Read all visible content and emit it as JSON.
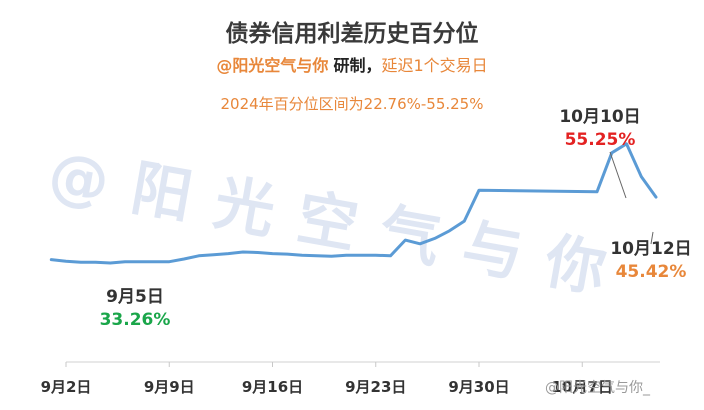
{
  "chart_data": {
    "type": "line",
    "title": "债券信用利差历史百分位",
    "subtitle": {
      "author": "@阳光空气与你",
      "action": "研制，",
      "note": "延迟1个交易日"
    },
    "range_note": "2024年百分位区间为22.76%-55.25%",
    "watermark": "@阳光空气与你",
    "weibo_watermark": "@阳光空气与你_",
    "x_ticks": [
      "9月2日",
      "9月9日",
      "9月16日",
      "9月23日",
      "9月30日",
      "10月7日"
    ],
    "xlim": [
      "9月2日",
      "10月12日"
    ],
    "ylim": [
      15,
      70
    ],
    "series": [
      {
        "color": "#5b9bd5",
        "points": [
          {
            "x": "9月1日",
            "y": 33.9
          },
          {
            "x": "9月2日",
            "y": 33.6
          },
          {
            "x": "9月3日",
            "y": 33.4
          },
          {
            "x": "9月4日",
            "y": 33.4
          },
          {
            "x": "9月5日",
            "y": 33.26
          },
          {
            "x": "9月6日",
            "y": 33.5
          },
          {
            "x": "9月7日",
            "y": 33.5
          },
          {
            "x": "9月8日",
            "y": 33.5
          },
          {
            "x": "9月9日",
            "y": 33.5
          },
          {
            "x": "9月10日",
            "y": 34.0
          },
          {
            "x": "9月11日",
            "y": 34.6
          },
          {
            "x": "9月12日",
            "y": 34.8
          },
          {
            "x": "9月13日",
            "y": 35.0
          },
          {
            "x": "9月14日",
            "y": 35.3
          },
          {
            "x": "9月15日",
            "y": 35.2
          },
          {
            "x": "9月16日",
            "y": 35.0
          },
          {
            "x": "9月17日",
            "y": 34.9
          },
          {
            "x": "9月18日",
            "y": 34.7
          },
          {
            "x": "9月19日",
            "y": 34.6
          },
          {
            "x": "9月20日",
            "y": 34.5
          },
          {
            "x": "9月21日",
            "y": 34.7
          },
          {
            "x": "9月22日",
            "y": 34.7
          },
          {
            "x": "9月23日",
            "y": 34.7
          },
          {
            "x": "9月24日",
            "y": 34.6
          },
          {
            "x": "9月25日",
            "y": 37.5
          },
          {
            "x": "9月26日",
            "y": 36.8
          },
          {
            "x": "9月27日",
            "y": 37.8
          },
          {
            "x": "9月28日",
            "y": 39.2
          },
          {
            "x": "9月29日",
            "y": 41.0
          },
          {
            "x": "9月30日",
            "y": 46.7
          },
          {
            "x": "10月8日",
            "y": 46.4
          },
          {
            "x": "10月9日",
            "y": 53.6
          },
          {
            "x": "10月10日",
            "y": 55.25
          },
          {
            "x": "10月11日",
            "y": 49.2
          },
          {
            "x": "10月12日",
            "y": 45.42
          }
        ]
      }
    ],
    "annotations": [
      {
        "date": "9月5日",
        "value": "33.26%",
        "color": "#1aa64a"
      },
      {
        "date": "10月10日",
        "value": "55.25%",
        "color": "#e32222"
      },
      {
        "date": "10月12日",
        "value": "45.42%",
        "color": "#e8873a"
      }
    ],
    "grid": false,
    "legend": "none"
  }
}
